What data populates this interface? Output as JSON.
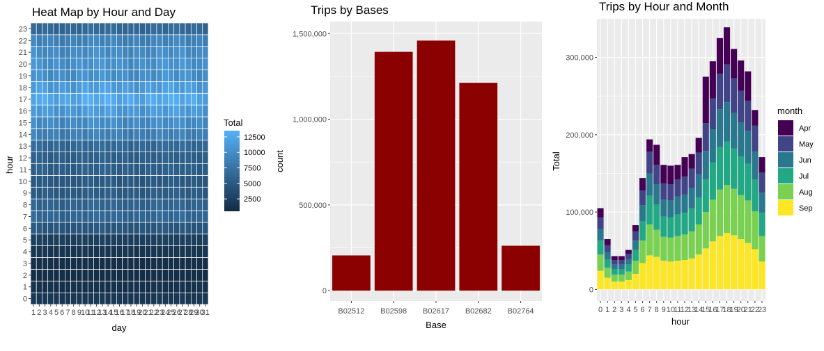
{
  "chart_data": [
    {
      "type": "heatmap",
      "title": "Heat Map by Hour and Day",
      "xlabel": "day",
      "ylabel": "hour",
      "x_categories": [
        "1",
        "2",
        "3",
        "4",
        "5",
        "6",
        "7",
        "8",
        "9",
        "10",
        "11",
        "12",
        "13",
        "14",
        "15",
        "16",
        "17",
        "18",
        "19",
        "20",
        "21",
        "22",
        "23",
        "24",
        "25",
        "26",
        "27",
        "28",
        "29",
        "30",
        "31"
      ],
      "y_categories": [
        "0",
        "1",
        "2",
        "3",
        "4",
        "5",
        "6",
        "7",
        "8",
        "9",
        "10",
        "11",
        "12",
        "13",
        "14",
        "15",
        "16",
        "17",
        "18",
        "19",
        "20",
        "21",
        "22",
        "23"
      ],
      "hour_level": [
        1700,
        1100,
        800,
        900,
        1500,
        2500,
        4700,
        6200,
        6000,
        5200,
        5000,
        5500,
        5600,
        6400,
        8700,
        9800,
        11200,
        12600,
        11400,
        10200,
        10300,
        9800,
        9000,
        6500
      ],
      "legend": {
        "title": "Total",
        "ticks": [
          12500,
          10000,
          7500,
          5000,
          2500
        ],
        "min": 500,
        "max": 13500,
        "low_color": "#132B43",
        "high_color": "#56B1F7"
      },
      "grid": true
    },
    {
      "type": "bar",
      "title": "Trips by Bases",
      "xlabel": "Base",
      "ylabel": "count",
      "categories": [
        "B02512",
        "B02598",
        "B02617",
        "B02682",
        "B02764"
      ],
      "values": [
        205673,
        1393113,
        1458853,
        1212789,
        262161
      ],
      "ylim": [
        -60000,
        1570000
      ],
      "y_ticks": [
        0,
        500000,
        1000000,
        1500000
      ],
      "y_tick_labels": [
        "0",
        "500,000",
        "1,000,000",
        "1,500,000"
      ],
      "bar_color": "#8B0000",
      "grid": true
    },
    {
      "type": "bar",
      "stacked": true,
      "title": "Trips by Hour and Month",
      "xlabel": "hour",
      "ylabel": "Total",
      "categories": [
        "0",
        "1",
        "2",
        "3",
        "4",
        "5",
        "6",
        "7",
        "8",
        "9",
        "10",
        "11",
        "12",
        "13",
        "14",
        "15",
        "16",
        "17",
        "18",
        "19",
        "20",
        "21",
        "22",
        "23"
      ],
      "ylim": [
        -15000,
        350000
      ],
      "y_ticks": [
        0,
        100000,
        200000,
        300000
      ],
      "y_tick_labels": [
        "0",
        "100,000",
        "200,000",
        "300,000"
      ],
      "legend": {
        "title": "month",
        "position": "right"
      },
      "series": [
        {
          "name": "Sep",
          "color": "#FDE725",
          "values": [
            24000,
            15000,
            10000,
            10000,
            12000,
            20000,
            34000,
            44000,
            42000,
            37000,
            36000,
            37000,
            38000,
            40000,
            45000,
            53000,
            62000,
            69000,
            73000,
            70000,
            65000,
            60000,
            52000,
            36000
          ]
        },
        {
          "name": "Aug",
          "color": "#7AD151",
          "values": [
            21000,
            13000,
            9000,
            9000,
            11000,
            17000,
            29000,
            40000,
            35000,
            31000,
            31000,
            32000,
            33000,
            35000,
            39000,
            47000,
            54000,
            60000,
            62000,
            60000,
            57000,
            55000,
            49000,
            33000
          ]
        },
        {
          "name": "Jul",
          "color": "#22A884",
          "values": [
            18000,
            11000,
            7000,
            7000,
            9000,
            14000,
            25000,
            37000,
            33000,
            26000,
            26000,
            28000,
            28000,
            30000,
            35000,
            42000,
            48000,
            55000,
            56000,
            52000,
            50000,
            48000,
            41000,
            30000
          ]
        },
        {
          "name": "Jun",
          "color": "#2A788E",
          "values": [
            15000,
            9000,
            6000,
            6000,
            7000,
            12000,
            21000,
            29000,
            26000,
            22000,
            22000,
            23000,
            24000,
            26000,
            30000,
            37000,
            43000,
            49000,
            51000,
            46000,
            44000,
            42000,
            36000,
            26000
          ]
        },
        {
          "name": "May",
          "color": "#414487",
          "values": [
            15000,
            9000,
            6000,
            6000,
            7000,
            12000,
            19000,
            28000,
            25000,
            21000,
            21000,
            22000,
            23000,
            25000,
            28000,
            36000,
            40000,
            46000,
            49000,
            45000,
            41000,
            39000,
            34000,
            26000
          ]
        },
        {
          "name": "Apr",
          "color": "#440154",
          "values": [
            12000,
            8000,
            5000,
            5000,
            5000,
            8000,
            16000,
            16000,
            26000,
            24000,
            24000,
            19000,
            25000,
            19000,
            19000,
            60000,
            48000,
            46000,
            48000,
            38000,
            39000,
            38000,
            20000,
            20000
          ]
        }
      ],
      "grid": true
    }
  ]
}
